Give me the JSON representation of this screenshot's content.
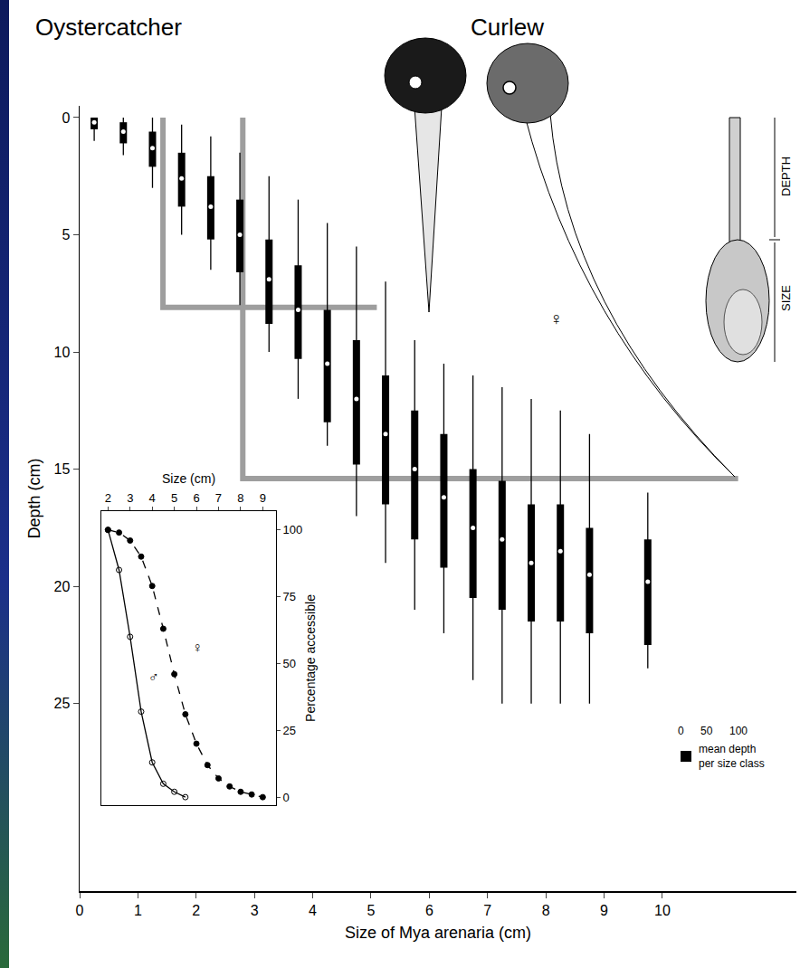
{
  "chart_data": [
    {
      "type": "range",
      "x_label": "Size of Mya arenaria (cm)",
      "y_label": "Depth (cm)",
      "xlim": [
        0,
        12.3
      ],
      "xticks": [
        0,
        1,
        2,
        3,
        4,
        5,
        6,
        7,
        8,
        9,
        10
      ],
      "ylim": [
        33,
        -0.5
      ],
      "yticks": [
        0,
        5,
        10,
        15,
        20,
        25
      ],
      "x": [
        0.25,
        0.75,
        1.25,
        1.75,
        2.25,
        2.75,
        3.25,
        3.75,
        4.25,
        4.75,
        5.25,
        5.75,
        6.25,
        6.75,
        7.25,
        7.75,
        8.25,
        8.75,
        9.75
      ],
      "series": [
        {
          "name": "mean depth per size class",
          "color": "#000000",
          "values": [
            0.2,
            0.6,
            1.3,
            2.6,
            3.8,
            5.0,
            6.9,
            8.2,
            10.5,
            12.0,
            13.5,
            15.0,
            16.2,
            17.5,
            18.0,
            19.0,
            18.5,
            19.5,
            19.8
          ],
          "depth_min": [
            0,
            0,
            0,
            0.3,
            0.8,
            1.5,
            2.5,
            3.5,
            4.5,
            5.5,
            7,
            9.5,
            10.5,
            11,
            11.5,
            12,
            12.5,
            13.5,
            16
          ],
          "depth_max": [
            1,
            1.6,
            3,
            5,
            6.5,
            8,
            10,
            12,
            14,
            17,
            19,
            21,
            22,
            24,
            25,
            25,
            25,
            25,
            23.5
          ],
          "core_min": [
            0,
            0.2,
            0.6,
            1.5,
            2.5,
            3.5,
            5.2,
            6.3,
            8.2,
            9.5,
            11,
            12.5,
            13.5,
            15,
            15.5,
            16.5,
            16.5,
            17.5,
            18
          ],
          "core_max": [
            0.5,
            1.1,
            2.1,
            3.8,
            5.2,
            6.6,
            8.8,
            10.3,
            13,
            14.8,
            16.5,
            18,
            19.2,
            20.5,
            21,
            21.5,
            21.5,
            22,
            22.5
          ]
        }
      ],
      "reach": [
        {
          "bird": "Oystercatcher",
          "color": "#9e9e9e",
          "x": [
            1.43,
            1.43,
            5.1
          ],
          "y": [
            0,
            8.1,
            8.1
          ]
        },
        {
          "bird": "Curlew",
          "color": "#9e9e9e",
          "x": [
            2.8,
            2.8,
            11.3
          ],
          "y": [
            0,
            15.4,
            15.4
          ]
        }
      ],
      "annotations": [
        "DEPTH",
        "SIZE",
        "♀"
      ],
      "width_scale": [
        0,
        50,
        100
      ]
    },
    {
      "type": "line",
      "x_label": "Size (cm)",
      "y_label": "Percentage accessible",
      "xlim": [
        1.7,
        9.6
      ],
      "xticks": [
        2,
        3,
        4,
        5,
        6,
        7,
        8,
        9
      ],
      "ylim": [
        -3,
        107
      ],
      "yticks": [
        0,
        25,
        50,
        75,
        100
      ],
      "series": [
        {
          "name": "♂",
          "color": "#000000",
          "marker": "circle-open",
          "line_style": "solid",
          "x": [
            2,
            2.5,
            3,
            3.5,
            4,
            4.5,
            5,
            5.5
          ],
          "values": [
            100,
            85,
            60,
            32,
            13,
            5,
            2,
            0
          ]
        },
        {
          "name": "♀",
          "color": "#000000",
          "marker": "circle",
          "line_style": "dash",
          "x": [
            2,
            2.5,
            3,
            3.5,
            4,
            4.5,
            5,
            5.5,
            6,
            6.5,
            7,
            7.5,
            8,
            8.5,
            9
          ],
          "values": [
            100,
            99,
            96,
            90,
            79,
            63,
            46,
            31,
            20,
            12,
            7,
            4,
            2,
            1,
            0
          ]
        }
      ]
    }
  ]
}
